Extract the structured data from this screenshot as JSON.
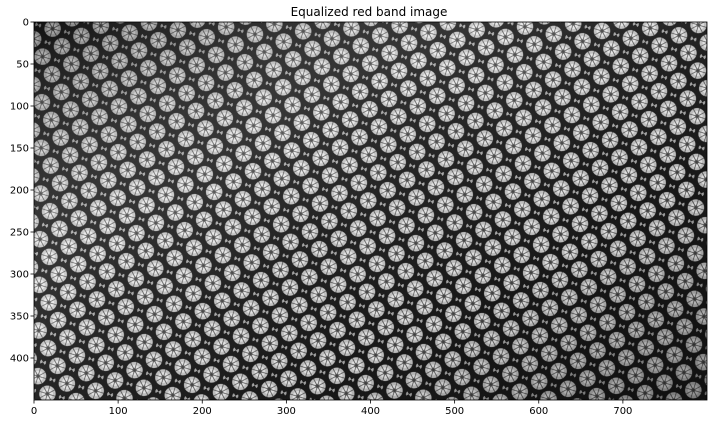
{
  "figure": {
    "title": "Equalized red band image"
  },
  "chart_data": {
    "type": "heatmap",
    "title": "Equalized red band image",
    "colormap": "gray",
    "image_width": 800,
    "image_height": 450,
    "xlim": [
      0,
      800
    ],
    "ylim": [
      450,
      0
    ],
    "x_ticks": [
      0,
      100,
      200,
      300,
      400,
      500,
      600,
      700
    ],
    "y_ticks": [
      0,
      50,
      100,
      150,
      200,
      250,
      300,
      350,
      400
    ],
    "x_tick_labels": [
      "0",
      "100",
      "200",
      "300",
      "400",
      "500",
      "600",
      "700"
    ],
    "y_tick_labels": [
      "0",
      "50",
      "100",
      "150",
      "200",
      "250",
      "300",
      "350",
      "400"
    ],
    "grid": false,
    "legend": "none"
  }
}
